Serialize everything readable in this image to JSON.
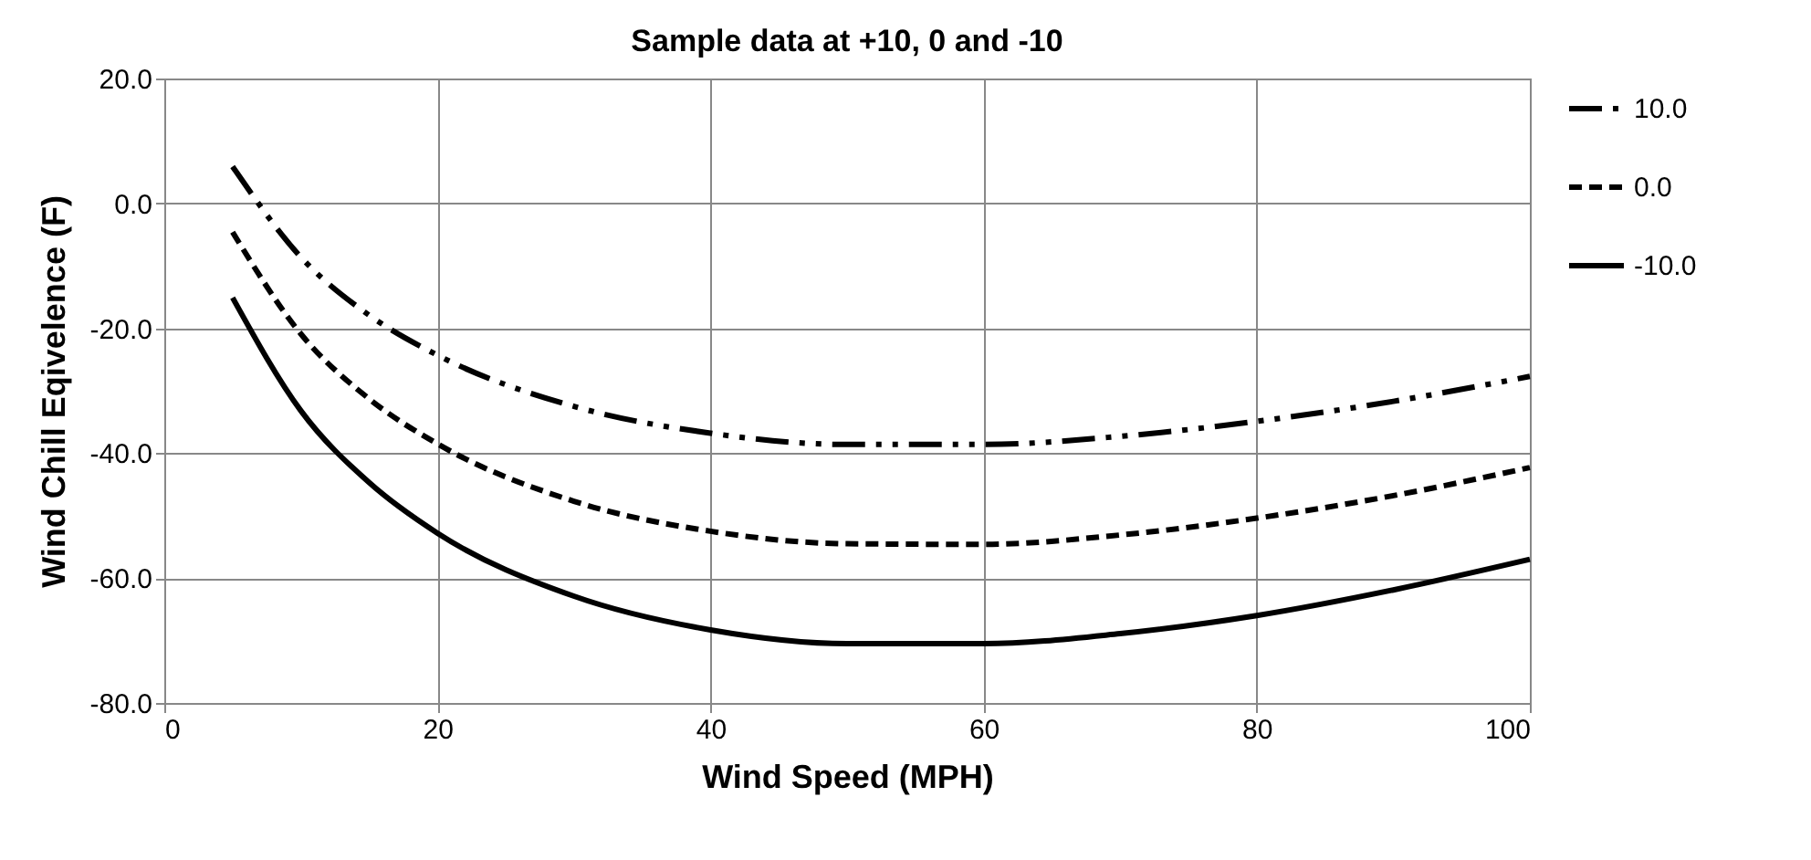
{
  "chart_data": {
    "type": "line",
    "title": "Sample data at +10, 0 and -10",
    "xlabel": "Wind Speed (MPH)",
    "ylabel": "Wind Chill Eqivelence (F)",
    "x": [
      5,
      10,
      15,
      20,
      30,
      40,
      50,
      60,
      70,
      80,
      90,
      100
    ],
    "series": [
      {
        "name": "10.0",
        "color": "#000000",
        "line_style": "dashdot",
        "values": [
          5.9,
          -8.6,
          -17.9,
          -24.3,
          -32.5,
          -36.8,
          -38.6,
          -38.6,
          -37.3,
          -34.9,
          -31.7,
          -27.7
        ]
      },
      {
        "name": "0.0",
        "color": "#000000",
        "line_style": "dashed",
        "values": [
          -4.6,
          -20.9,
          -31.3,
          -38.5,
          -47.7,
          -52.5,
          -54.5,
          -54.6,
          -53.1,
          -50.4,
          -46.8,
          -42.3
        ]
      },
      {
        "name": "-10.0",
        "color": "#000000",
        "line_style": "solid",
        "values": [
          -15.1,
          -33.2,
          -44.7,
          -52.8,
          -62.9,
          -68.3,
          -70.5,
          -70.5,
          -68.9,
          -66.0,
          -61.9,
          -57.0
        ]
      }
    ],
    "xlim": [
      0,
      100
    ],
    "xticks": [
      0,
      20,
      40,
      60,
      80,
      100
    ],
    "ylim": [
      -80,
      20
    ],
    "yticks": [
      {
        "value": -80,
        "label": "-80.0"
      },
      {
        "value": -60,
        "label": "-60.0"
      },
      {
        "value": -40,
        "label": "-40.0"
      },
      {
        "value": -20,
        "label": "-20.0"
      },
      {
        "value": 0,
        "label": "0.0"
      },
      {
        "value": 20,
        "label": "20.0"
      }
    ],
    "grid": true,
    "legend": "right",
    "marker": "none"
  }
}
